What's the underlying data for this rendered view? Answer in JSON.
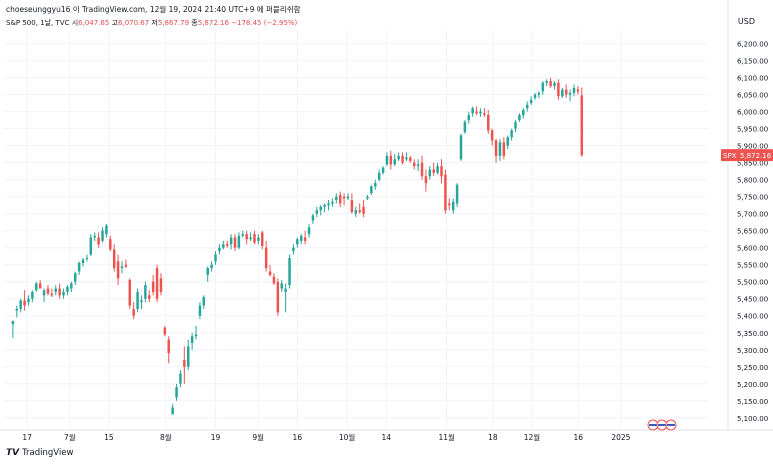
{
  "header": {
    "line": "choeseunggyu16 이 TradingView.com, 12월 19, 2024 21:40 UTC+9 에 퍼블리쉬함"
  },
  "legend": {
    "symbol": "S&P 500, 1날, TVC",
    "open_label": "시",
    "open": "6,047.65",
    "high_label": "고",
    "high": "6,070.67",
    "low_label": "저",
    "low": "5,867.79",
    "close_label": "종",
    "close": "5,872.16",
    "change": "−178.45 (−2.95%)"
  },
  "price_axis": {
    "currency": "USD",
    "badge_symbol": "SPX",
    "badge_value": "5,872.16"
  },
  "footer": {
    "brand": "TradingView"
  },
  "colors": {
    "up": "#26a69a",
    "down": "#ef5350",
    "grid": "#f0f3fa",
    "axis_text": "#131722"
  },
  "chart_data": {
    "type": "candlestick",
    "title": "S&P 500, 1날, TVC",
    "ylim": [
      5070,
      6240
    ],
    "y_ticks": [
      5100,
      5150,
      5200,
      5250,
      5300,
      5350,
      5400,
      5450,
      5500,
      5550,
      5600,
      5650,
      5700,
      5750,
      5800,
      5850,
      5900,
      5950,
      6000,
      6050,
      6100,
      6150,
      6200
    ],
    "y_tick_labels": [
      "5,100.00",
      "5,150.00",
      "5,200.00",
      "5,250.00",
      "5,300.00",
      "5,350.00",
      "5,400.00",
      "5,450.00",
      "5,500.00",
      "5,550.00",
      "5,600.00",
      "5,650.00",
      "5,700.00",
      "5,750.00",
      "5,800.00",
      "5,850.00",
      "5,900.00",
      "5,950.00",
      "6,000.00",
      "6,050.00",
      "6,100.00",
      "6,150.00",
      "6,200.00"
    ],
    "x_tick_labels": [
      "17",
      "7월",
      "15",
      "8월",
      "19",
      "9월",
      "16",
      "10월",
      "14",
      "11월",
      "18",
      "12월",
      "16",
      "2025"
    ],
    "x_tick_bar_index": [
      6,
      18,
      29,
      45,
      59,
      71,
      82,
      96,
      107,
      124,
      137,
      148,
      161,
      173
    ],
    "grid": true,
    "candles": [
      {
        "o": 5375,
        "h": 5385,
        "l": 5335,
        "c": 5385
      },
      {
        "o": 5415,
        "h": 5430,
        "l": 5395,
        "c": 5420
      },
      {
        "o": 5420,
        "h": 5450,
        "l": 5410,
        "c": 5445
      },
      {
        "o": 5445,
        "h": 5475,
        "l": 5415,
        "c": 5430
      },
      {
        "o": 5440,
        "h": 5460,
        "l": 5430,
        "c": 5450
      },
      {
        "o": 5450,
        "h": 5475,
        "l": 5440,
        "c": 5470
      },
      {
        "o": 5475,
        "h": 5500,
        "l": 5470,
        "c": 5495
      },
      {
        "o": 5495,
        "h": 5505,
        "l": 5480,
        "c": 5480
      },
      {
        "o": 5460,
        "h": 5480,
        "l": 5440,
        "c": 5475
      },
      {
        "o": 5480,
        "h": 5490,
        "l": 5460,
        "c": 5465
      },
      {
        "o": 5465,
        "h": 5480,
        "l": 5455,
        "c": 5460
      },
      {
        "o": 5470,
        "h": 5490,
        "l": 5460,
        "c": 5480
      },
      {
        "o": 5480,
        "h": 5495,
        "l": 5450,
        "c": 5460
      },
      {
        "o": 5460,
        "h": 5480,
        "l": 5450,
        "c": 5470
      },
      {
        "o": 5470,
        "h": 5490,
        "l": 5460,
        "c": 5485
      },
      {
        "o": 5480,
        "h": 5500,
        "l": 5470,
        "c": 5495
      },
      {
        "o": 5500,
        "h": 5530,
        "l": 5490,
        "c": 5525
      },
      {
        "o": 5530,
        "h": 5560,
        "l": 5520,
        "c": 5555
      },
      {
        "o": 5555,
        "h": 5570,
        "l": 5545,
        "c": 5565
      },
      {
        "o": 5570,
        "h": 5580,
        "l": 5560,
        "c": 5570
      },
      {
        "o": 5580,
        "h": 5640,
        "l": 5575,
        "c": 5630
      },
      {
        "o": 5630,
        "h": 5645,
        "l": 5620,
        "c": 5635
      },
      {
        "o": 5630,
        "h": 5645,
        "l": 5600,
        "c": 5610
      },
      {
        "o": 5620,
        "h": 5660,
        "l": 5615,
        "c": 5650
      },
      {
        "o": 5640,
        "h": 5670,
        "l": 5630,
        "c": 5665
      },
      {
        "o": 5625,
        "h": 5635,
        "l": 5590,
        "c": 5595
      },
      {
        "o": 5595,
        "h": 5610,
        "l": 5530,
        "c": 5540
      },
      {
        "o": 5560,
        "h": 5580,
        "l": 5490,
        "c": 5510
      },
      {
        "o": 5540,
        "h": 5560,
        "l": 5525,
        "c": 5545
      },
      {
        "o": 5550,
        "h": 5565,
        "l": 5540,
        "c": 5545
      },
      {
        "o": 5505,
        "h": 5510,
        "l": 5420,
        "c": 5430
      },
      {
        "o": 5420,
        "h": 5440,
        "l": 5390,
        "c": 5400
      },
      {
        "o": 5420,
        "h": 5480,
        "l": 5410,
        "c": 5470
      },
      {
        "o": 5440,
        "h": 5460,
        "l": 5420,
        "c": 5445
      },
      {
        "o": 5450,
        "h": 5500,
        "l": 5440,
        "c": 5490
      },
      {
        "o": 5460,
        "h": 5475,
        "l": 5440,
        "c": 5450
      },
      {
        "o": 5500,
        "h": 5520,
        "l": 5460,
        "c": 5470
      },
      {
        "o": 5540,
        "h": 5550,
        "l": 5440,
        "c": 5450
      },
      {
        "o": 5510,
        "h": 5525,
        "l": 5460,
        "c": 5470
      },
      {
        "o": 5365,
        "h": 5370,
        "l": 5340,
        "c": 5345
      },
      {
        "o": 5330,
        "h": 5340,
        "l": 5260,
        "c": 5290
      },
      {
        "o": 5110,
        "h": 5140,
        "l": 5120,
        "c": 5130
      },
      {
        "o": 5160,
        "h": 5200,
        "l": 5150,
        "c": 5190
      },
      {
        "o": 5200,
        "h": 5240,
        "l": 5190,
        "c": 5230
      },
      {
        "o": 5270,
        "h": 5310,
        "l": 5200,
        "c": 5250
      },
      {
        "o": 5250,
        "h": 5330,
        "l": 5240,
        "c": 5310
      },
      {
        "o": 5320,
        "h": 5350,
        "l": 5300,
        "c": 5340
      },
      {
        "o": 5340,
        "h": 5370,
        "l": 5330,
        "c": 5345
      },
      {
        "o": 5400,
        "h": 5440,
        "l": 5390,
        "c": 5430
      },
      {
        "o": 5430,
        "h": 5460,
        "l": 5420,
        "c": 5455
      },
      {
        "o": 5520,
        "h": 5545,
        "l": 5500,
        "c": 5540
      },
      {
        "o": 5540,
        "h": 5560,
        "l": 5530,
        "c": 5550
      },
      {
        "o": 5560,
        "h": 5590,
        "l": 5550,
        "c": 5580
      },
      {
        "o": 5590,
        "h": 5610,
        "l": 5580,
        "c": 5600
      },
      {
        "o": 5600,
        "h": 5620,
        "l": 5595,
        "c": 5610
      },
      {
        "o": 5610,
        "h": 5620,
        "l": 5600,
        "c": 5605
      },
      {
        "o": 5610,
        "h": 5640,
        "l": 5595,
        "c": 5630
      },
      {
        "o": 5630,
        "h": 5640,
        "l": 5590,
        "c": 5600
      },
      {
        "o": 5600,
        "h": 5645,
        "l": 5595,
        "c": 5635
      },
      {
        "o": 5635,
        "h": 5650,
        "l": 5630,
        "c": 5640
      },
      {
        "o": 5640,
        "h": 5650,
        "l": 5610,
        "c": 5625
      },
      {
        "o": 5625,
        "h": 5645,
        "l": 5620,
        "c": 5630
      },
      {
        "o": 5640,
        "h": 5650,
        "l": 5610,
        "c": 5615
      },
      {
        "o": 5620,
        "h": 5640,
        "l": 5610,
        "c": 5630
      },
      {
        "o": 5645,
        "h": 5650,
        "l": 5595,
        "c": 5605
      },
      {
        "o": 5600,
        "h": 5620,
        "l": 5530,
        "c": 5540
      },
      {
        "o": 5530,
        "h": 5550,
        "l": 5515,
        "c": 5520
      },
      {
        "o": 5515,
        "h": 5525,
        "l": 5490,
        "c": 5495
      },
      {
        "o": 5500,
        "h": 5510,
        "l": 5400,
        "c": 5410
      },
      {
        "o": 5480,
        "h": 5505,
        "l": 5470,
        "c": 5495
      },
      {
        "o": 5470,
        "h": 5495,
        "l": 5410,
        "c": 5480
      },
      {
        "o": 5490,
        "h": 5580,
        "l": 5480,
        "c": 5570
      },
      {
        "o": 5590,
        "h": 5610,
        "l": 5580,
        "c": 5600
      },
      {
        "o": 5610,
        "h": 5630,
        "l": 5600,
        "c": 5625
      },
      {
        "o": 5620,
        "h": 5640,
        "l": 5610,
        "c": 5635
      },
      {
        "o": 5630,
        "h": 5650,
        "l": 5610,
        "c": 5620
      },
      {
        "o": 5640,
        "h": 5670,
        "l": 5630,
        "c": 5660
      },
      {
        "o": 5680,
        "h": 5700,
        "l": 5670,
        "c": 5695
      },
      {
        "o": 5700,
        "h": 5720,
        "l": 5690,
        "c": 5710
      },
      {
        "o": 5710,
        "h": 5725,
        "l": 5695,
        "c": 5720
      },
      {
        "o": 5720,
        "h": 5730,
        "l": 5705,
        "c": 5725
      },
      {
        "o": 5725,
        "h": 5740,
        "l": 5710,
        "c": 5730
      },
      {
        "o": 5730,
        "h": 5745,
        "l": 5720,
        "c": 5735
      },
      {
        "o": 5740,
        "h": 5760,
        "l": 5730,
        "c": 5750
      },
      {
        "o": 5755,
        "h": 5765,
        "l": 5720,
        "c": 5730
      },
      {
        "o": 5750,
        "h": 5760,
        "l": 5725,
        "c": 5745
      },
      {
        "o": 5745,
        "h": 5760,
        "l": 5740,
        "c": 5750
      },
      {
        "o": 5740,
        "h": 5760,
        "l": 5700,
        "c": 5705
      },
      {
        "o": 5700,
        "h": 5720,
        "l": 5690,
        "c": 5710
      },
      {
        "o": 5710,
        "h": 5730,
        "l": 5700,
        "c": 5705
      },
      {
        "o": 5720,
        "h": 5740,
        "l": 5690,
        "c": 5700
      },
      {
        "o": 5745,
        "h": 5755,
        "l": 5740,
        "c": 5750
      },
      {
        "o": 5760,
        "h": 5785,
        "l": 5755,
        "c": 5780
      },
      {
        "o": 5780,
        "h": 5800,
        "l": 5770,
        "c": 5790
      },
      {
        "o": 5800,
        "h": 5830,
        "l": 5795,
        "c": 5820
      },
      {
        "o": 5820,
        "h": 5840,
        "l": 5815,
        "c": 5835
      },
      {
        "o": 5845,
        "h": 5880,
        "l": 5840,
        "c": 5870
      },
      {
        "o": 5870,
        "h": 5885,
        "l": 5830,
        "c": 5845
      },
      {
        "o": 5845,
        "h": 5875,
        "l": 5840,
        "c": 5860
      },
      {
        "o": 5860,
        "h": 5880,
        "l": 5855,
        "c": 5870
      },
      {
        "o": 5870,
        "h": 5880,
        "l": 5845,
        "c": 5850
      },
      {
        "o": 5860,
        "h": 5880,
        "l": 5855,
        "c": 5865
      },
      {
        "o": 5865,
        "h": 5870,
        "l": 5850,
        "c": 5855
      },
      {
        "o": 5850,
        "h": 5860,
        "l": 5830,
        "c": 5840
      },
      {
        "o": 5840,
        "h": 5860,
        "l": 5825,
        "c": 5845
      },
      {
        "o": 5850,
        "h": 5870,
        "l": 5800,
        "c": 5810
      },
      {
        "o": 5810,
        "h": 5830,
        "l": 5765,
        "c": 5790
      },
      {
        "o": 5810,
        "h": 5840,
        "l": 5800,
        "c": 5830
      },
      {
        "o": 5830,
        "h": 5850,
        "l": 5810,
        "c": 5820
      },
      {
        "o": 5820,
        "h": 5850,
        "l": 5815,
        "c": 5840
      },
      {
        "o": 5840,
        "h": 5860,
        "l": 5790,
        "c": 5810
      },
      {
        "o": 5815,
        "h": 5830,
        "l": 5700,
        "c": 5710
      },
      {
        "o": 5730,
        "h": 5745,
        "l": 5710,
        "c": 5725
      },
      {
        "o": 5710,
        "h": 5745,
        "l": 5700,
        "c": 5735
      },
      {
        "o": 5730,
        "h": 5790,
        "l": 5720,
        "c": 5785
      },
      {
        "o": 5860,
        "h": 5935,
        "l": 5855,
        "c": 5930
      },
      {
        "o": 5940,
        "h": 5975,
        "l": 5935,
        "c": 5970
      },
      {
        "o": 5975,
        "h": 6000,
        "l": 5965,
        "c": 5990
      },
      {
        "o": 5995,
        "h": 6015,
        "l": 5985,
        "c": 6010
      },
      {
        "o": 6000,
        "h": 6015,
        "l": 5990,
        "c": 5995
      },
      {
        "o": 5995,
        "h": 6010,
        "l": 5985,
        "c": 6000
      },
      {
        "o": 5995,
        "h": 6010,
        "l": 5985,
        "c": 5990
      },
      {
        "o": 5990,
        "h": 6005,
        "l": 5935,
        "c": 5945
      },
      {
        "o": 5945,
        "h": 5950,
        "l": 5900,
        "c": 5915
      },
      {
        "o": 5915,
        "h": 5920,
        "l": 5850,
        "c": 5870
      },
      {
        "o": 5870,
        "h": 5920,
        "l": 5855,
        "c": 5910
      },
      {
        "o": 5910,
        "h": 5925,
        "l": 5860,
        "c": 5870
      },
      {
        "o": 5900,
        "h": 5930,
        "l": 5890,
        "c": 5925
      },
      {
        "o": 5925,
        "h": 5950,
        "l": 5915,
        "c": 5945
      },
      {
        "o": 5950,
        "h": 5975,
        "l": 5940,
        "c": 5970
      },
      {
        "o": 5975,
        "h": 5995,
        "l": 5970,
        "c": 5990
      },
      {
        "o": 5990,
        "h": 6010,
        "l": 5980,
        "c": 6005
      },
      {
        "o": 6010,
        "h": 6030,
        "l": 6000,
        "c": 6020
      },
      {
        "o": 6025,
        "h": 6045,
        "l": 6020,
        "c": 6035
      },
      {
        "o": 6040,
        "h": 6055,
        "l": 6035,
        "c": 6050
      },
      {
        "o": 6050,
        "h": 6060,
        "l": 6040,
        "c": 6055
      },
      {
        "o": 6060,
        "h": 6090,
        "l": 6050,
        "c": 6085
      },
      {
        "o": 6085,
        "h": 6095,
        "l": 6075,
        "c": 6090
      },
      {
        "o": 6090,
        "h": 6100,
        "l": 6070,
        "c": 6075
      },
      {
        "o": 6075,
        "h": 6090,
        "l": 6065,
        "c": 6085
      },
      {
        "o": 6085,
        "h": 6095,
        "l": 6035,
        "c": 6045
      },
      {
        "o": 6045,
        "h": 6070,
        "l": 6040,
        "c": 6065
      },
      {
        "o": 6065,
        "h": 6080,
        "l": 6040,
        "c": 6050
      },
      {
        "o": 6050,
        "h": 6065,
        "l": 6030,
        "c": 6055
      },
      {
        "o": 6055,
        "h": 6080,
        "l": 6045,
        "c": 6070
      },
      {
        "o": 6065,
        "h": 6075,
        "l": 6050,
        "c": 6060
      },
      {
        "o": 6047.65,
        "h": 6070.67,
        "l": 5867.79,
        "c": 5872.16
      }
    ]
  }
}
